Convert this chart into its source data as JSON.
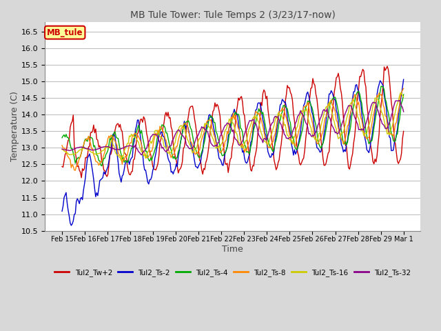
{
  "title": "MB Tule Tower: Tule Temps 2 (3/23/17-now)",
  "xlabel": "Time",
  "ylabel": "Temperature (C)",
  "ylim": [
    10.5,
    16.8
  ],
  "yticks": [
    10.5,
    11.0,
    11.5,
    12.0,
    12.5,
    13.0,
    13.5,
    14.0,
    14.5,
    15.0,
    15.5,
    16.0,
    16.5
  ],
  "xtick_labels": [
    "Feb 15",
    "Feb 16",
    "Feb 17",
    "Feb 18",
    "Feb 19",
    "Feb 20",
    "Feb 21",
    "Feb 22",
    "Feb 23",
    "Feb 24",
    "Feb 25",
    "Feb 26",
    "Feb 27",
    "Feb 28",
    "Feb 29",
    "Mar 1"
  ],
  "legend_label": "MB_tule",
  "series_labels": [
    "Tul2_Tw+2",
    "Tul2_Ts-2",
    "Tul2_Ts-4",
    "Tul2_Ts-8",
    "Tul2_Ts-16",
    "Tul2_Ts-32"
  ],
  "series_colors": [
    "#cc0000",
    "#0000cc",
    "#00aa00",
    "#ff8800",
    "#cccc00",
    "#880088"
  ],
  "background_color": "#d8d8d8",
  "plot_bg_color": "#ffffff",
  "grid_color": "#c0c0c0",
  "title_fontsize": 10,
  "axis_fontsize": 9,
  "legend_box_color": "#ffff99",
  "legend_box_edge": "#cc0000"
}
